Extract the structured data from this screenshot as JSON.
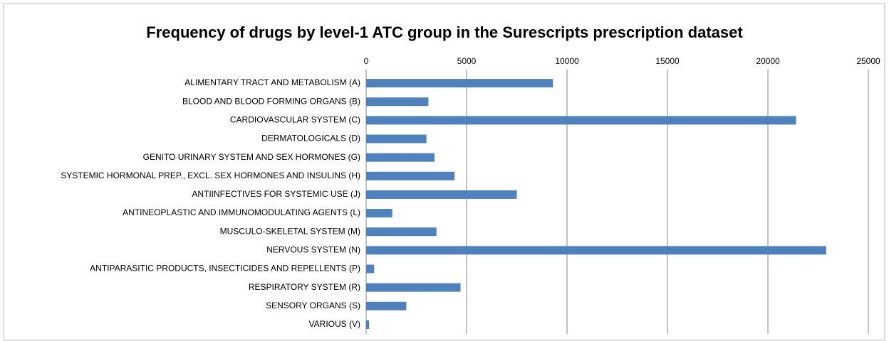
{
  "chart_data": {
    "type": "bar",
    "orientation": "horizontal",
    "title": "Frequency of drugs by level-1 ATC group in the Surescripts prescription dataset",
    "categories": [
      "ALIMENTARY TRACT AND METABOLISM (A)",
      "BLOOD AND BLOOD FORMING ORGANS (B)",
      "CARDIOVASCULAR SYSTEM (C)",
      "DERMATOLOGICALS (D)",
      "GENITO URINARY SYSTEM AND SEX HORMONES (G)",
      "SYSTEMIC HORMONAL PREP., EXCL. SEX HORMONES AND INSULINS (H)",
      "ANTIINFECTIVES FOR SYSTEMIC USE (J)",
      "ANTINEOPLASTIC AND IMMUNOMODULATING AGENTS (L)",
      "MUSCULO-SKELETAL SYSTEM (M)",
      "NERVOUS SYSTEM (N)",
      "ANTIPARASITIC PRODUCTS, INSECTICIDES AND REPELLENTS (P)",
      "RESPIRATORY SYSTEM (R)",
      "SENSORY ORGANS (S)",
      "VARIOUS (V)"
    ],
    "values": [
      9300,
      3100,
      21400,
      3000,
      3400,
      4400,
      7500,
      1300,
      3500,
      22900,
      400,
      4700,
      2000,
      150
    ],
    "color": "#4f81bd",
    "xlim": [
      0,
      25000
    ],
    "xticks": [
      0,
      5000,
      10000,
      15000,
      20000,
      25000
    ],
    "grid": true
  }
}
